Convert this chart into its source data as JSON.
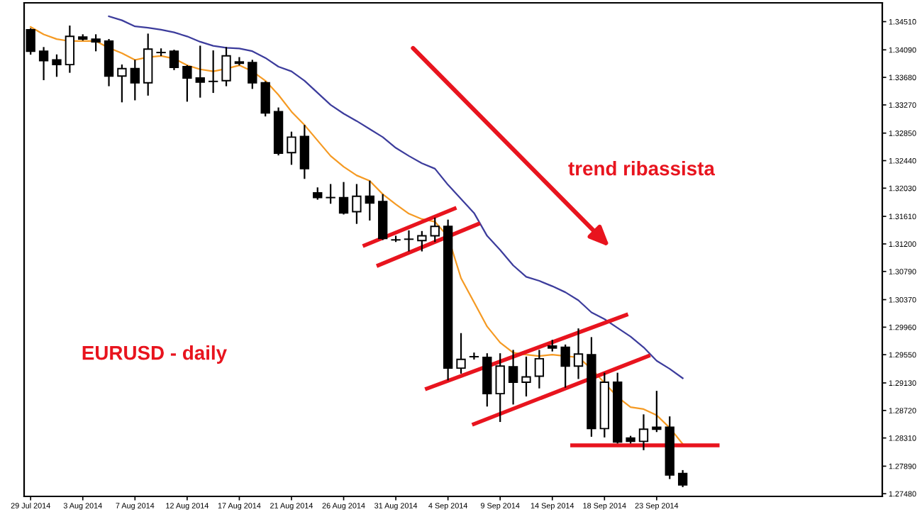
{
  "chart_data": {
    "type": "candlestick",
    "categories": [
      "29 Jul 2014",
      null,
      null,
      null,
      "3 Aug 2014",
      null,
      null,
      null,
      "7 Aug 2014",
      null,
      null,
      null,
      "12 Aug 2014",
      null,
      null,
      null,
      "17 Aug 2014",
      null,
      null,
      null,
      "21 Aug 2014",
      null,
      null,
      null,
      "26 Aug 2014",
      null,
      null,
      null,
      "31 Aug 2014",
      null,
      null,
      null,
      "4 Sep 2014",
      null,
      null,
      null,
      "9 Sep 2014",
      null,
      null,
      null,
      "14 Sep 2014",
      null,
      null,
      null,
      "18 Sep 2014",
      null,
      null,
      null,
      "23 Sep 2014",
      null,
      null
    ],
    "ohlc": [
      [
        1.3439,
        1.344,
        1.3403,
        1.3407
      ],
      [
        1.3407,
        1.3412,
        1.3365,
        1.3393
      ],
      [
        1.3394,
        1.3401,
        1.337,
        1.3387
      ],
      [
        1.3387,
        1.3444,
        1.3376,
        1.3429
      ],
      [
        1.3428,
        1.3431,
        1.3424,
        1.3425
      ],
      [
        1.3425,
        1.3431,
        1.3408,
        1.3421
      ],
      [
        1.3422,
        1.3424,
        1.3356,
        1.337
      ],
      [
        1.337,
        1.3386,
        1.3332,
        1.3381
      ],
      [
        1.3381,
        1.3393,
        1.3335,
        1.336
      ],
      [
        1.336,
        1.3432,
        1.3342,
        1.341
      ],
      [
        1.3405,
        1.341,
        1.3401,
        1.3405
      ],
      [
        1.3407,
        1.3408,
        1.338,
        1.3383
      ],
      [
        1.3384,
        1.3385,
        1.3333,
        1.3367
      ],
      [
        1.3367,
        1.3414,
        1.3339,
        1.3361
      ],
      [
        1.3362,
        1.3407,
        1.3346,
        1.3362
      ],
      [
        1.3363,
        1.3412,
        1.3356,
        1.34
      ],
      [
        1.3389,
        1.3397,
        1.3387,
        1.3391
      ],
      [
        1.339,
        1.3393,
        1.3352,
        1.336
      ],
      [
        1.336,
        1.3361,
        1.3311,
        1.3315
      ],
      [
        1.3317,
        1.3322,
        1.3253,
        1.3255
      ],
      [
        1.3256,
        1.3286,
        1.3239,
        1.3279
      ],
      [
        1.328,
        1.3296,
        1.3218,
        1.3232
      ],
      [
        1.3196,
        1.3203,
        1.3187,
        1.3189
      ],
      [
        1.3189,
        1.3208,
        1.3181,
        1.3189
      ],
      [
        1.3189,
        1.3211,
        1.3165,
        1.3166
      ],
      [
        1.3168,
        1.3208,
        1.3151,
        1.3191
      ],
      [
        1.3191,
        1.3213,
        1.3156,
        1.3181
      ],
      [
        1.3183,
        1.3193,
        1.3127,
        1.3128
      ],
      [
        1.3126,
        1.3131,
        1.3124,
        1.3126
      ],
      [
        1.3127,
        1.3139,
        1.311,
        1.3127
      ],
      [
        1.3125,
        1.3138,
        1.311,
        1.3132
      ],
      [
        1.3132,
        1.3158,
        1.3124,
        1.3146
      ],
      [
        1.3146,
        1.3155,
        1.2918,
        1.2935
      ],
      [
        1.2935,
        1.2986,
        1.2928,
        1.2948
      ],
      [
        1.2952,
        1.2957,
        1.2949,
        1.2952
      ],
      [
        1.2951,
        1.2956,
        1.2879,
        1.2897
      ],
      [
        1.2897,
        1.2956,
        1.2856,
        1.2938
      ],
      [
        1.2937,
        1.2961,
        1.2882,
        1.2914
      ],
      [
        1.2914,
        1.2951,
        1.2894,
        1.2922
      ],
      [
        1.2923,
        1.2961,
        1.2906,
        1.2949
      ],
      [
        1.2968,
        1.2976,
        1.2961,
        1.2965
      ],
      [
        1.2966,
        1.2969,
        1.2907,
        1.2938
      ],
      [
        1.2938,
        1.2993,
        1.292,
        1.2956
      ],
      [
        1.2955,
        1.298,
        1.2834,
        1.2845
      ],
      [
        1.2845,
        1.2927,
        1.2833,
        1.2914
      ],
      [
        1.2914,
        1.2927,
        1.2824,
        1.2825
      ],
      [
        1.2831,
        1.2833,
        1.2824,
        1.2826
      ],
      [
        1.2826,
        1.2865,
        1.2814,
        1.2844
      ],
      [
        1.2847,
        1.29,
        1.2841,
        1.2844
      ],
      [
        1.2847,
        1.2862,
        1.2771,
        1.2776
      ],
      [
        1.2778,
        1.2782,
        1.2759,
        1.2761
      ]
    ],
    "series": [
      {
        "type": "line",
        "color": "#f59a23",
        "values": [
          1.3443,
          1.3432,
          1.3425,
          1.3422,
          1.3422,
          1.3422,
          1.3412,
          1.3404,
          1.3394,
          1.3398,
          1.34,
          1.3396,
          1.3386,
          1.338,
          1.3377,
          1.3381,
          1.3386,
          1.3377,
          1.3363,
          1.3342,
          1.3317,
          1.3297,
          1.3274,
          1.3251,
          1.3235,
          1.3222,
          1.3214,
          1.3194,
          1.3179,
          1.3165,
          1.3157,
          1.3153,
          1.3131,
          1.3069,
          1.3033,
          1.2997,
          1.2973,
          1.2958,
          1.2955,
          1.2953,
          1.2955,
          1.2953,
          1.2951,
          1.2934,
          1.2913,
          1.2892,
          1.2877,
          1.2874,
          1.2865,
          1.2846,
          1.2822
        ]
      },
      {
        "type": "line",
        "color": "#3c3c9c",
        "values": [
          null,
          null,
          null,
          null,
          null,
          null,
          1.3459,
          1.3453,
          1.3444,
          1.3442,
          1.3439,
          1.3435,
          1.3429,
          1.3421,
          1.3415,
          1.3412,
          1.3411,
          1.3407,
          1.3397,
          1.3384,
          1.3377,
          1.3363,
          1.3345,
          1.3327,
          1.3314,
          1.3303,
          1.3291,
          1.3279,
          1.3263,
          1.3251,
          1.324,
          1.3232,
          1.3208,
          1.3187,
          1.3166,
          1.3132,
          1.3111,
          1.3088,
          1.3071,
          1.3065,
          1.3057,
          1.3048,
          1.3036,
          1.3018,
          1.3008,
          1.2995,
          1.2982,
          1.2966,
          1.2946,
          1.2934,
          1.292
        ]
      }
    ],
    "ylim": [
      1.2744,
      1.3479
    ],
    "ref_lines": [
      {
        "axis": "y",
        "value": 1.282,
        "color": "#e8141e"
      }
    ],
    "yticks": [
      {
        "value": 1.3451,
        "label": "1.34510"
      },
      {
        "value": 1.3409,
        "label": "1.34090"
      },
      {
        "value": 1.3368,
        "label": "1.33680"
      },
      {
        "value": 1.3327,
        "label": "1.33270"
      },
      {
        "value": 1.3285,
        "label": "1.32850"
      },
      {
        "value": 1.3244,
        "label": "1.32440"
      },
      {
        "value": 1.3203,
        "label": "1.32030"
      },
      {
        "value": 1.3161,
        "label": "1.31610"
      },
      {
        "value": 1.312,
        "label": "1.31200"
      },
      {
        "value": 1.3079,
        "label": "1.30790"
      },
      {
        "value": 1.3037,
        "label": "1.30370"
      },
      {
        "value": 1.2996,
        "label": "1.29960"
      },
      {
        "value": 1.2955,
        "label": "1.29550"
      },
      {
        "value": 1.2913,
        "label": "1.29130"
      },
      {
        "value": 1.2872,
        "label": "1.28720"
      },
      {
        "value": 1.2831,
        "label": "1.28310"
      },
      {
        "value": 1.2789,
        "label": "1.27890"
      },
      {
        "value": 1.2748,
        "label": "1.27480"
      }
    ],
    "annotations": [
      "trend ribassista",
      "EURUSD - daily"
    ],
    "grid": false
  }
}
